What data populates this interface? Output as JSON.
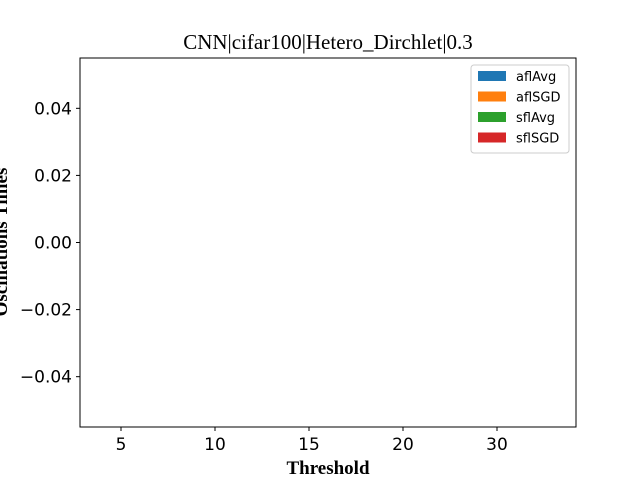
{
  "chart_data": {
    "type": "bar",
    "title": "CNN|cifar100|Hetero_Dirchlet|0.3",
    "xlabel": "Threshold",
    "ylabel": "Oscillations Times",
    "categories": [
      "5",
      "10",
      "15",
      "20",
      "30"
    ],
    "series": [
      {
        "name": "aflAvg",
        "color": "#1f77b4",
        "values": [
          0,
          0,
          0,
          0,
          0
        ]
      },
      {
        "name": "aflSGD",
        "color": "#ff7f0e",
        "values": [
          0,
          0,
          0,
          0,
          0
        ]
      },
      {
        "name": "sflAvg",
        "color": "#2ca02c",
        "values": [
          0,
          0,
          0,
          0,
          0
        ]
      },
      {
        "name": "sflSGD",
        "color": "#d62728",
        "values": [
          0,
          0,
          0,
          0,
          0
        ]
      }
    ],
    "ylim": [
      -0.055,
      0.055
    ],
    "yticks": [
      0.04,
      0.02,
      0.0,
      -0.02,
      -0.04
    ],
    "ytick_labels": [
      "0.04",
      "0.02",
      "0.00",
      "−0.02",
      "−0.04"
    ],
    "grid": false,
    "legend_position": "top-right"
  }
}
